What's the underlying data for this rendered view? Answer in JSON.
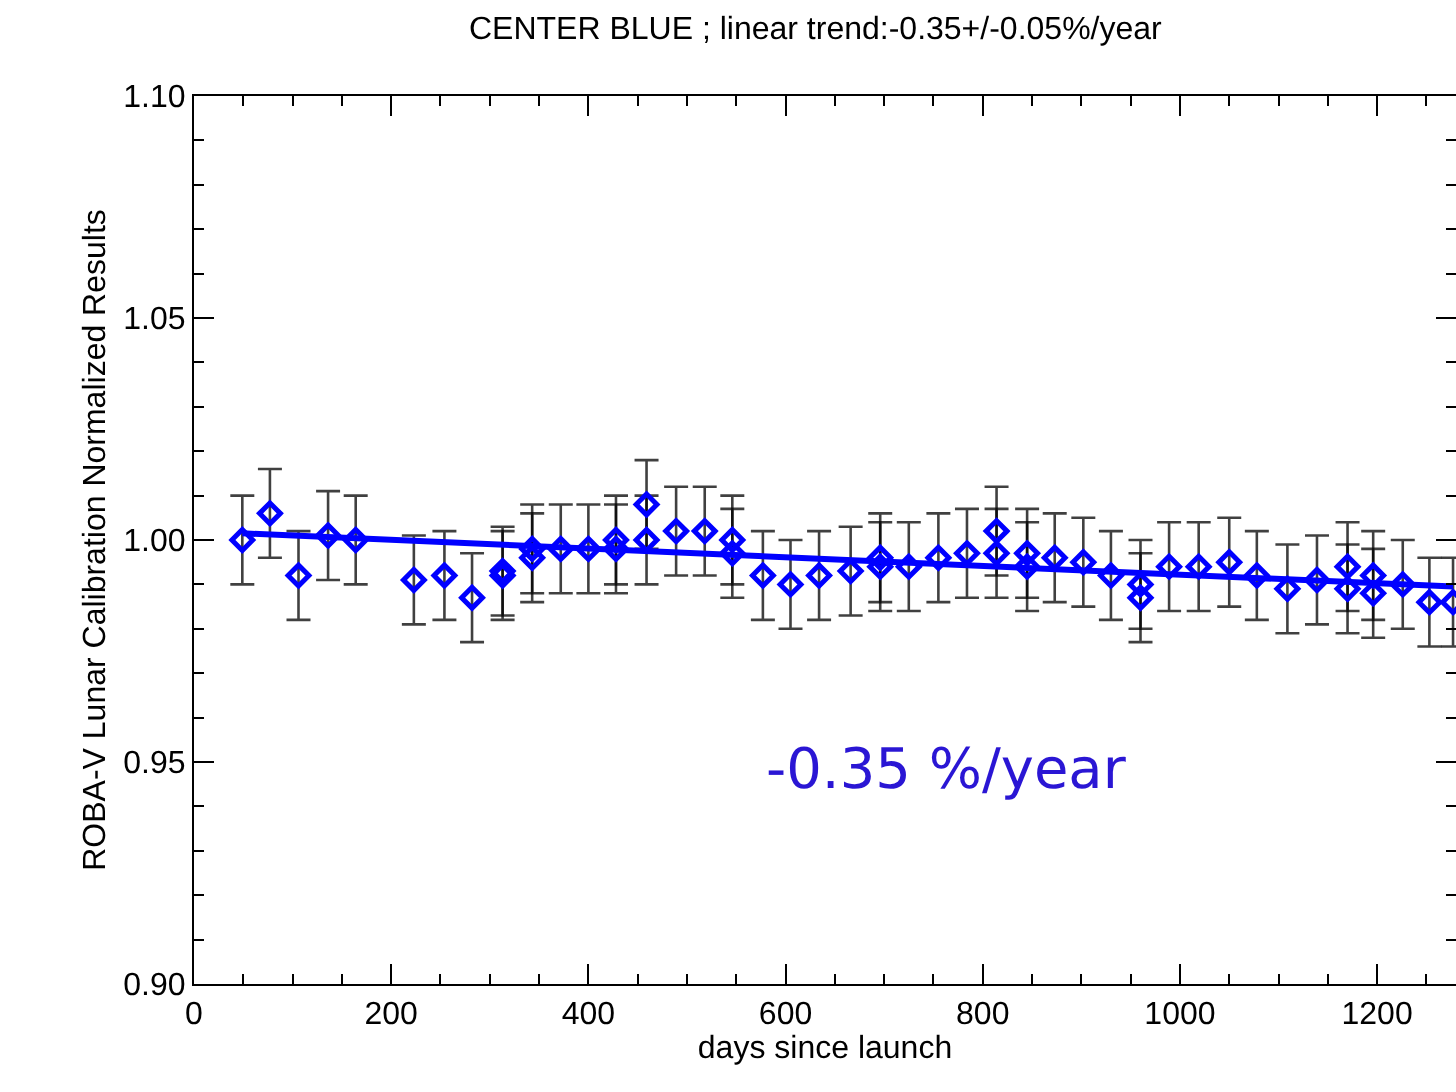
{
  "chart_data": {
    "type": "scatter",
    "title": "CENTER BLUE ; linear trend:-0.35+/-0.05%/year",
    "xlabel": "days since launch",
    "ylabel": "ROBA-V Lunar Calibration Normalized Results",
    "xlim": [
      0,
      1280
    ],
    "xticks": [
      0,
      200,
      400,
      600,
      800,
      1000,
      1200
    ],
    "ylim": [
      0.9,
      1.1
    ],
    "yticks": [
      {
        "value": 0.9,
        "label": "0.90"
      },
      {
        "value": 0.95,
        "label": "0.95"
      },
      {
        "value": 1.0,
        "label": "1.00"
      },
      {
        "value": 1.05,
        "label": "1.05"
      },
      {
        "value": 1.1,
        "label": "1.10"
      }
    ],
    "marker": "diamond",
    "annotations": [
      "-0.35 %/year"
    ],
    "series": [
      {
        "color": "#0000ff",
        "x": [
          49,
          77,
          106,
          136,
          164,
          223,
          254,
          282,
          313,
          313,
          343,
          343,
          372,
          400,
          428,
          428,
          459,
          459,
          489,
          518,
          546,
          546,
          577,
          605,
          634,
          666,
          696,
          696,
          725,
          755,
          784,
          814,
          814,
          845,
          845,
          873,
          902,
          930,
          960,
          960,
          989,
          1019,
          1050,
          1078,
          1109,
          1139,
          1170,
          1170,
          1196,
          1196,
          1226,
          1253,
          1277
        ],
        "values": [
          1.0,
          1.006,
          0.992,
          1.001,
          1.0,
          0.991,
          0.992,
          0.987,
          0.992,
          0.993,
          0.998,
          0.996,
          0.998,
          0.998,
          1.0,
          0.998,
          1.008,
          1.0,
          1.002,
          1.002,
          1.0,
          0.997,
          0.992,
          0.99,
          0.992,
          0.993,
          0.994,
          0.996,
          0.994,
          0.996,
          0.997,
          1.002,
          0.997,
          0.997,
          0.994,
          0.996,
          0.995,
          0.992,
          0.99,
          0.987,
          0.994,
          0.994,
          0.995,
          0.992,
          0.989,
          0.991,
          0.994,
          0.989,
          0.992,
          0.988,
          0.99,
          0.986,
          0.986
        ],
        "errors": [
          0.01,
          0.01,
          0.01,
          0.01,
          0.01,
          0.01,
          0.01,
          0.01,
          0.01,
          0.01,
          0.01,
          0.01,
          0.01,
          0.01,
          0.01,
          0.01,
          0.01,
          0.01,
          0.01,
          0.01,
          0.01,
          0.01,
          0.01,
          0.01,
          0.01,
          0.01,
          0.01,
          0.01,
          0.01,
          0.01,
          0.01,
          0.01,
          0.01,
          0.01,
          0.01,
          0.01,
          0.01,
          0.01,
          0.01,
          0.01,
          0.01,
          0.01,
          0.01,
          0.01,
          0.01,
          0.01,
          0.01,
          0.01,
          0.01,
          0.01,
          0.01,
          0.01,
          0.01
        ]
      },
      {
        "type": "line",
        "color": "#0000ff",
        "x": [
          49,
          1277
        ],
        "values": [
          1.0015,
          0.9895
        ],
        "marker": "none"
      }
    ]
  }
}
